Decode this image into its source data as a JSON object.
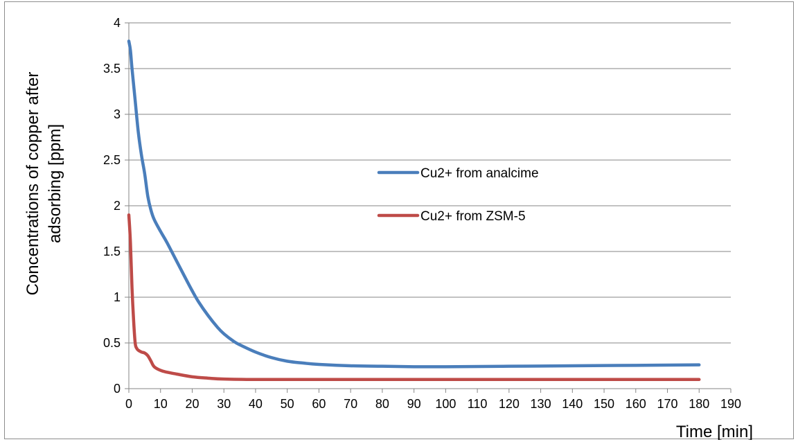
{
  "chart_data": {
    "type": "line",
    "title": "",
    "xlabel": "Time [min]",
    "ylabel_line1": "Concentrations of copper after",
    "ylabel_line2": "adsorbing [ppm]",
    "xlim": [
      0,
      190
    ],
    "ylim": [
      0,
      4
    ],
    "x_ticks": [
      "0",
      "10",
      "20",
      "30",
      "40",
      "50",
      "60",
      "70",
      "80",
      "90",
      "100",
      "110",
      "120",
      "130",
      "140",
      "150",
      "160",
      "170",
      "180",
      "190"
    ],
    "y_ticks": [
      "0",
      "0.5",
      "1",
      "1.5",
      "2",
      "2.5",
      "3",
      "3.5",
      "4"
    ],
    "grid": "horizontal",
    "legend_position": "center",
    "series": [
      {
        "name": "Cu2+ from analcime",
        "color": "#4a7ebb",
        "x": [
          0,
          0.5,
          1,
          2,
          3,
          4,
          5,
          6,
          7,
          8,
          10,
          12,
          15,
          18,
          20,
          22,
          25,
          28,
          30,
          33,
          35,
          40,
          45,
          50,
          55,
          60,
          70,
          80,
          90,
          100,
          120,
          140,
          160,
          180
        ],
        "y": [
          3.8,
          3.7,
          3.5,
          3.15,
          2.8,
          2.55,
          2.35,
          2.1,
          1.95,
          1.85,
          1.72,
          1.6,
          1.4,
          1.2,
          1.07,
          0.95,
          0.8,
          0.67,
          0.6,
          0.52,
          0.48,
          0.4,
          0.34,
          0.3,
          0.28,
          0.265,
          0.25,
          0.245,
          0.24,
          0.24,
          0.245,
          0.25,
          0.255,
          0.26
        ]
      },
      {
        "name": "Cu2+ from ZSM-5",
        "color": "#be4b48",
        "x": [
          0,
          0.5,
          1,
          1.5,
          2,
          2.5,
          3,
          4,
          5,
          6,
          7,
          8,
          10,
          12,
          15,
          20,
          25,
          30,
          40,
          60,
          90,
          120,
          150,
          180
        ],
        "y": [
          1.9,
          1.6,
          1.1,
          0.75,
          0.5,
          0.44,
          0.42,
          0.4,
          0.39,
          0.36,
          0.3,
          0.24,
          0.2,
          0.18,
          0.16,
          0.13,
          0.115,
          0.105,
          0.1,
          0.1,
          0.1,
          0.1,
          0.1,
          0.1
        ]
      }
    ]
  }
}
